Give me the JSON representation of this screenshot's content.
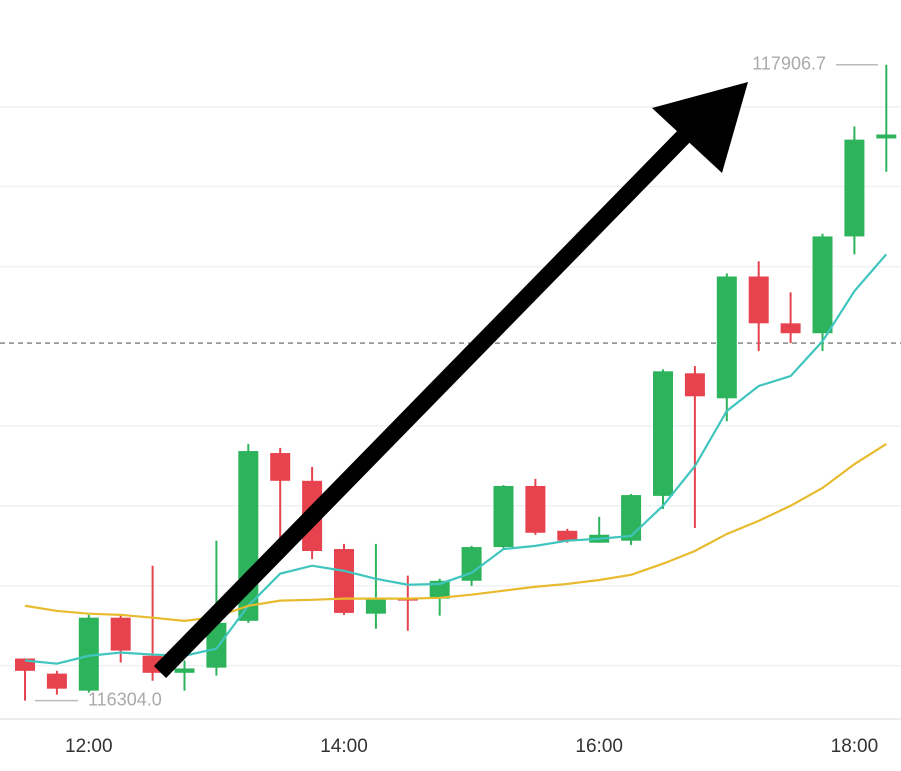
{
  "chart_data": {
    "type": "candlestick",
    "categories": [
      null,
      null,
      "12:00",
      null,
      null,
      null,
      null,
      null,
      null,
      null,
      "14:00",
      null,
      null,
      null,
      null,
      null,
      null,
      null,
      "16:00",
      null,
      null,
      null,
      null,
      null,
      null,
      null,
      "18:00",
      null
    ],
    "open": [
      116410,
      116372,
      116329,
      116513,
      116417,
      116374,
      116387,
      116505,
      116928,
      116858,
      116686,
      116523,
      116563,
      116561,
      116606,
      116691,
      116845,
      116732,
      116702,
      116707,
      116820,
      117129,
      117066,
      117373,
      117255,
      117230,
      117474,
      117721
    ],
    "high": [
      116410,
      116379,
      116520,
      116518,
      116644,
      116405,
      116707,
      116951,
      116941,
      116893,
      116699,
      116699,
      116619,
      116611,
      116694,
      116847,
      116863,
      116737,
      116767,
      116825,
      117139,
      117147,
      117381,
      117411,
      117333,
      117481,
      117751,
      117906.7
    ],
    "low": [
      116304,
      116319,
      116324,
      116400,
      116354,
      116329,
      116367,
      116500,
      116694,
      116661,
      116520,
      116485,
      116480,
      116518,
      116593,
      116686,
      116722,
      116702,
      116702,
      116696,
      116787,
      116739,
      117008,
      117185,
      117205,
      117185,
      117429,
      117637
    ],
    "close": [
      116379,
      116334,
      116513,
      116430,
      116374,
      116385,
      116500,
      116933,
      116858,
      116681,
      116525,
      116563,
      116556,
      116606,
      116691,
      116845,
      116727,
      116707,
      116722,
      116822,
      117134,
      117071,
      117373,
      117255,
      117230,
      117474,
      117718,
      117731
    ],
    "up_color": "#2db35b",
    "down_color": "#e6434f",
    "lines": [
      {
        "color": "#3fc5be",
        "values": [
          116405,
          116397,
          116417,
          116425,
          116420,
          116417,
          116435,
          116543,
          116624,
          116644,
          116631,
          116611,
          116596,
          116598,
          116626,
          116686,
          116694,
          116707,
          116712,
          116719,
          116795,
          116895,
          117034,
          117097,
          117122,
          117210,
          117336,
          117429
        ]
      },
      {
        "color": "#e8bb2e",
        "values": [
          116543,
          116530,
          116523,
          116520,
          116513,
          116505,
          116515,
          116543,
          116556,
          116558,
          116561,
          116561,
          116561,
          116563,
          116571,
          116581,
          116591,
          116598,
          116608,
          116621,
          116649,
          116681,
          116724,
          116757,
          116795,
          116840,
          116900,
          116951
        ]
      }
    ],
    "ylim": [
      116250,
      118070
    ],
    "grid": true,
    "grid_lines": [
      117801,
      117600,
      117398,
      116996,
      116795,
      116593,
      116392
    ],
    "last_price": 117205,
    "high_label": "117906.7",
    "low_label": "116304.0"
  }
}
